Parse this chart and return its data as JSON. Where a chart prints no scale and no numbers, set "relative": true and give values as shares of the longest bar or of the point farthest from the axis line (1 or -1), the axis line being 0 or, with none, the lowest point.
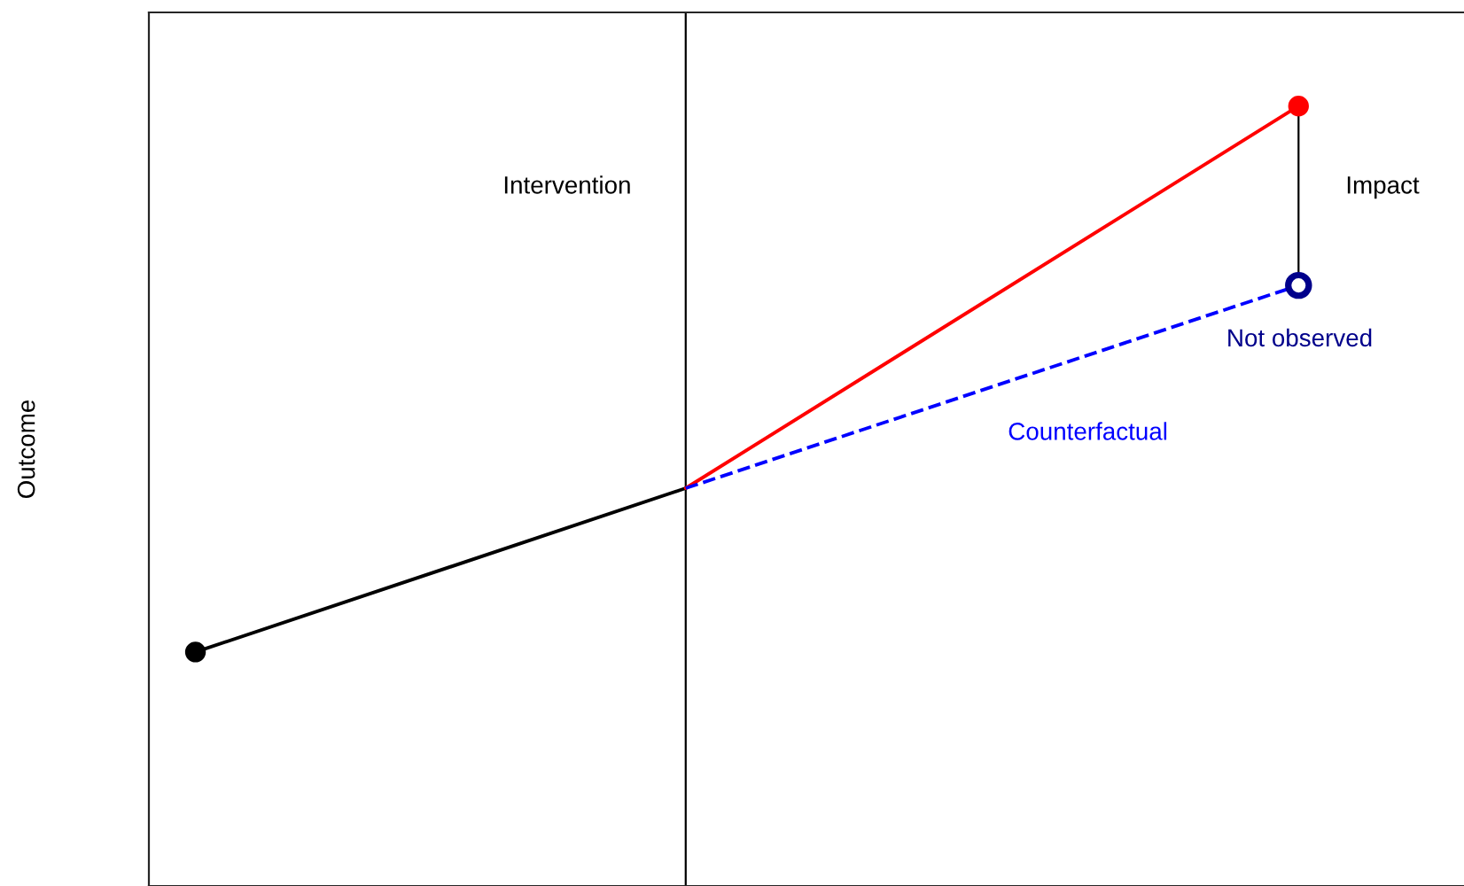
{
  "chart_data": {
    "type": "line",
    "relative": true,
    "legend": false,
    "categories": [
      null,
      null,
      null,
      null,
      null,
      null,
      null,
      null,
      null,
      null
    ],
    "series": [
      {
        "color": "#000000",
        "line_style": "solid",
        "values": [
          0.3,
          null,
          null,
          null,
          0.51,
          null,
          null,
          null,
          null,
          null
        ]
      },
      {
        "color": "#ff0000",
        "line_style": "solid",
        "values": [
          null,
          null,
          null,
          null,
          0.51,
          null,
          null,
          null,
          null,
          1
        ]
      },
      {
        "color": "#0000ff",
        "line_style": "dashed",
        "values": [
          null,
          null,
          null,
          null,
          0.51,
          null,
          null,
          null,
          null,
          0.77
        ]
      }
    ],
    "annotations": [
      "Intervention",
      "Impact",
      "Not observed",
      "Counterfactual",
      "Outcome"
    ]
  }
}
